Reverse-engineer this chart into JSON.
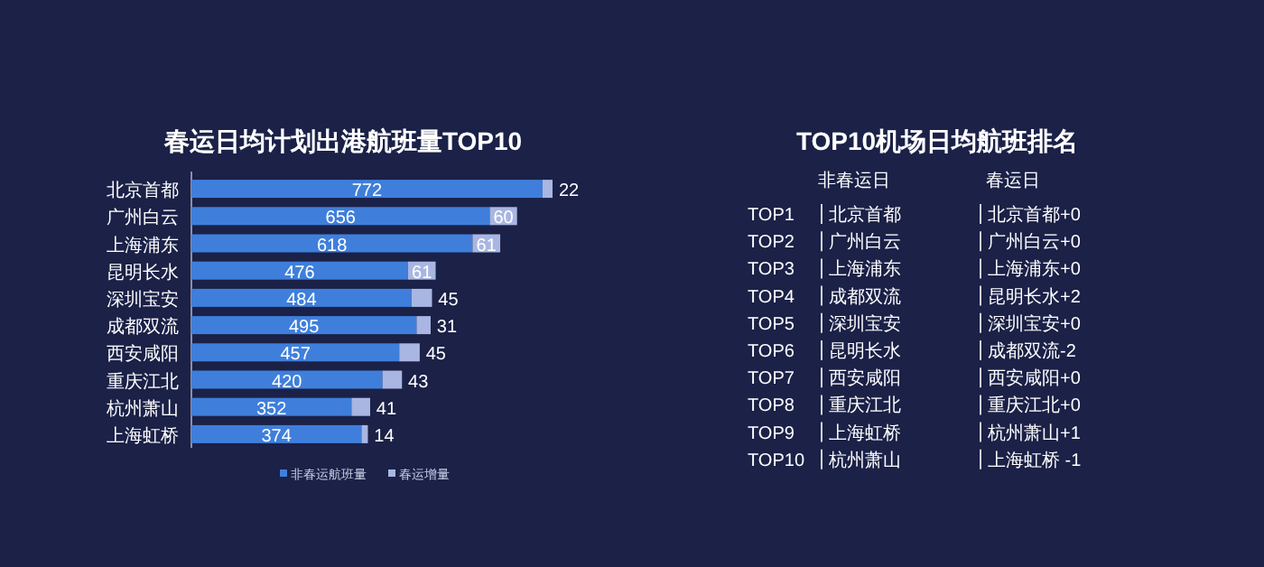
{
  "chart_data": [
    {
      "type": "bar",
      "title": "春运日均计划出港航班量TOP10",
      "orientation": "horizontal",
      "stacked": true,
      "data_labels": true,
      "legend": "bottom",
      "categories": [
        "北京首都",
        "广州白云",
        "上海浦东",
        "昆明长水",
        "深圳宝安",
        "成都双流",
        "西安咸阳",
        "重庆江北",
        "杭州萧山",
        "上海虹桥"
      ],
      "series": [
        {
          "name": "非春运航班量",
          "color": "#3f7fdb",
          "values": [
            772,
            656,
            618,
            476,
            484,
            495,
            457,
            420,
            352,
            374
          ]
        },
        {
          "name": "春运增量",
          "color": "#a9b6e2",
          "values": [
            22,
            60,
            61,
            61,
            45,
            31,
            45,
            43,
            41,
            14
          ]
        }
      ]
    },
    {
      "type": "other",
      "title": "TOP10机场日均航班排名",
      "categories": [
        "TOP1",
        "TOP2",
        "TOP3",
        "TOP4",
        "TOP5",
        "TOP6",
        "TOP7",
        "TOP8",
        "TOP9",
        "TOP10"
      ],
      "annotations": [
        "非春运日",
        "春运日",
        "北京首都",
        "北京首都+0",
        "广州白云",
        "广州白云+0",
        "上海浦东",
        "上海浦东+0",
        "成都双流",
        "昆明长水+2",
        "深圳宝安",
        "深圳宝安+0",
        "昆明长水",
        "成都双流-2",
        "西安咸阳",
        "西安咸阳+0",
        "重庆江北",
        "重庆江北+0",
        "上海虹桥",
        "杭州萧山+1",
        "杭州萧山",
        "上海虹桥 -1"
      ]
    }
  ]
}
